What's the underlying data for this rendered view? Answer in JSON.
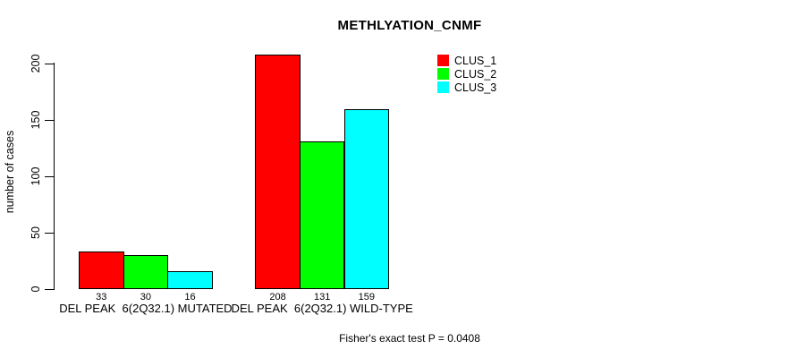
{
  "chart_data": {
    "type": "bar",
    "title": "METHLYATION_CNMF",
    "xlabel": "",
    "ylabel": "number of cases",
    "categories": [
      "DEL PEAK  6(2Q32.1) MUTATED",
      "DEL PEAK  6(2Q32.1) WILD-TYPE"
    ],
    "series": [
      {
        "name": "CLUS_1",
        "color": "#FF0000",
        "values": [
          33,
          208
        ]
      },
      {
        "name": "CLUS_2",
        "color": "#00FF00",
        "values": [
          30,
          131
        ]
      },
      {
        "name": "CLUS_3",
        "color": "#00FFFF",
        "values": [
          16,
          159
        ]
      }
    ],
    "bar_value_labels": [
      [
        "33",
        "30",
        "16"
      ],
      [
        "208",
        "131",
        "159"
      ]
    ],
    "yticks": [
      0,
      50,
      100,
      150,
      200
    ],
    "ylim": [
      0,
      216
    ],
    "grid": false,
    "legend_position": "top-right",
    "legend_entries": [
      "CLUS_1",
      "CLUS_2",
      "CLUS_3"
    ],
    "bar_border_color": "#000000",
    "annotation": "Fisher's exact test P = 0.0408"
  }
}
